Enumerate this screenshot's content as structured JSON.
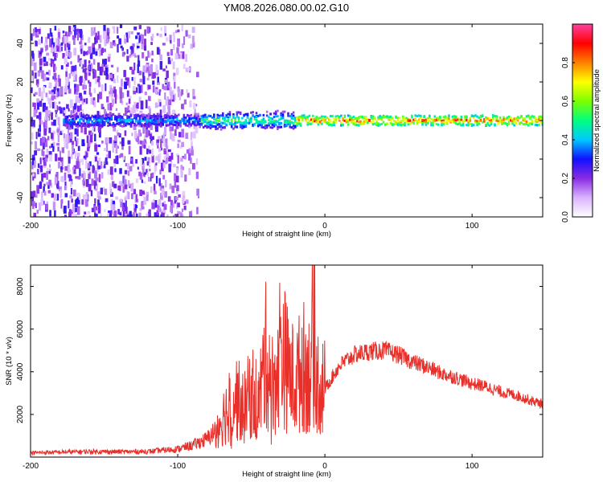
{
  "figure": {
    "title": "YM08.2026.080.00.02.G10"
  },
  "chart_data": [
    {
      "type": "heatmap",
      "name": "spectrogram",
      "xlabel": "Height of straight line (km)",
      "ylabel": "Frequency (Hz)",
      "xlim": [
        -200,
        148
      ],
      "ylim": [
        -50,
        50
      ],
      "xticks": [
        -200,
        -100,
        0,
        100
      ],
      "yticks": [
        -40,
        -20,
        0,
        20,
        40
      ],
      "colorbar": {
        "label": "Normalized spectral amplitude",
        "range": [
          0,
          1
        ],
        "ticks": [
          0.0,
          0.2,
          0.4,
          0.6,
          0.8
        ],
        "tick_labels": [
          "0.0",
          "0.2",
          "0.4",
          "0.6",
          "0.8"
        ],
        "colormap": [
          "#ffffff",
          "#d8b4ff",
          "#8a2be2",
          "#1010ff",
          "#00c8ff",
          "#00ff80",
          "#7cff00",
          "#ffff00",
          "#ff8000",
          "#ff0000",
          "#ff40a0"
        ]
      },
      "features": [
        {
          "label": "broadband noise",
          "x_range": [
            -200,
            -85
          ],
          "freq_range": [
            -50,
            50
          ],
          "amplitude": 0.15
        },
        {
          "label": "signal band",
          "x_range": [
            -178,
            148
          ],
          "center_frequency": 0,
          "amplitude": 0.9
        }
      ]
    },
    {
      "type": "line",
      "name": "snr",
      "xlabel": "Height of straight line (km)",
      "ylabel": "SNR (10 * v/v)",
      "xlim": [
        -200,
        148
      ],
      "ylim": [
        0,
        9000
      ],
      "xticks": [
        -200,
        -100,
        0,
        100
      ],
      "yticks": [
        2000,
        4000,
        6000,
        8000
      ],
      "color": "#e8302a",
      "series": [
        {
          "name": "SNR",
          "x": [
            -200,
            -180,
            -160,
            -140,
            -120,
            -100,
            -90,
            -80,
            -75,
            -70,
            -65,
            -60,
            -55,
            -50,
            -45,
            -40,
            -35,
            -30,
            -25,
            -20,
            -15,
            -10,
            -8,
            -5,
            0,
            10,
            20,
            30,
            40,
            50,
            60,
            70,
            80,
            90,
            100,
            110,
            120,
            130,
            140,
            148
          ],
          "y": [
            200,
            230,
            260,
            250,
            260,
            380,
            550,
            850,
            1200,
            1800,
            2400,
            2800,
            2200,
            3200,
            2500,
            4800,
            3200,
            5400,
            4000,
            3500,
            4300,
            3900,
            6500,
            3600,
            3200,
            4300,
            4800,
            4950,
            5000,
            4800,
            4450,
            4200,
            3900,
            3700,
            3450,
            3300,
            3050,
            2900,
            2650,
            2500
          ]
        }
      ]
    }
  ]
}
